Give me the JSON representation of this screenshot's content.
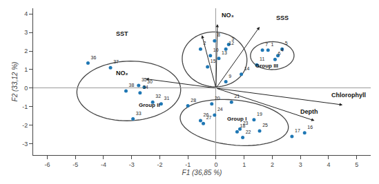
{
  "chart_data": {
    "type": "scatter",
    "xlabel": "F1 (36,85 %)",
    "ylabel": "F2 (33,12 %)",
    "xlim": [
      -6.5,
      5.5
    ],
    "ylim": [
      -3.6,
      4.3
    ],
    "xticks": [
      -6,
      -5,
      -4,
      -3,
      -2,
      -1,
      0,
      1,
      2,
      3,
      4,
      5
    ],
    "yticks": [
      -3,
      -2,
      -1,
      0,
      1,
      2,
      3,
      4
    ],
    "grid": false,
    "point_labels": [
      "1",
      "2",
      "3",
      "4",
      "5",
      "6",
      "7",
      "8",
      "9",
      "10",
      "11",
      "12",
      "13",
      "14",
      "15",
      "16",
      "17",
      "18",
      "19",
      "20",
      "21",
      "22",
      "23",
      "24",
      "25",
      "26",
      "27",
      "28",
      "30",
      "31",
      "32",
      "33",
      "34",
      "35",
      "36",
      "37",
      "38"
    ],
    "x": [
      1.85,
      -0.55,
      0.45,
      2.2,
      2.35,
      2.1,
      1.65,
      -0.05,
      0.35,
      -0.2,
      1.45,
      0.35,
      0.1,
      0.9,
      -0.3,
      3.15,
      2.7,
      0.75,
      1.35,
      -0.15,
      0.55,
      0.95,
      0.85,
      -0.05,
      1.55,
      -0.55,
      -0.45,
      -1.0,
      -2.55,
      -1.95,
      -2.25,
      -2.95,
      -2.7,
      -2.75,
      -4.55,
      -3.75,
      -3.2
    ],
    "values": [
      2.05,
      2.1,
      2.35,
      1.75,
      2.1,
      1.55,
      2.05,
      2.55,
      0.35,
      1.75,
      1.25,
      2.1,
      1.6,
      0.75,
      1.15,
      -2.4,
      -2.6,
      -2.35,
      -1.7,
      -0.85,
      -0.75,
      -2.65,
      -2.2,
      -1.45,
      -2.3,
      -1.75,
      -1.9,
      -0.95,
      0.05,
      -0.85,
      -0.75,
      -1.65,
      -0.25,
      0.15,
      1.35,
      1.1,
      -0.15
    ],
    "vectors": [
      {
        "label": "NO₃",
        "x": 0.05,
        "y": 3.45,
        "label_x": 0.15,
        "label_y": 3.68
      },
      {
        "label": "SSS",
        "x": 1.55,
        "y": 3.3,
        "label_x": 2.1,
        "label_y": 3.52
      },
      {
        "label": "SST",
        "x": -0.5,
        "y": 2.85,
        "label_x": -3.6,
        "label_y": 2.65
      },
      {
        "label": "NO₂",
        "x": -2.5,
        "y": 0.5,
        "label_x": -3.6,
        "label_y": 0.55
      },
      {
        "label": "Chlorophyll",
        "x": 4.5,
        "y": -0.9,
        "label_x": 4.05,
        "label_y": -0.65
      },
      {
        "label": "Depth",
        "x": 3.5,
        "y": -1.75,
        "label_x": 2.95,
        "label_y": -1.52
      }
    ],
    "ellipses": [
      {
        "cx": -3.1,
        "cy": -0.15,
        "width": 3.7,
        "height": 3.2,
        "angle": 8
      },
      {
        "cx": -0.05,
        "cy": 1.55,
        "width": 2.3,
        "height": 2.95,
        "angle": 3
      },
      {
        "cx": 2.0,
        "cy": 1.75,
        "width": 1.55,
        "height": 1.5,
        "angle": 8
      },
      {
        "cx": 0.65,
        "cy": -1.85,
        "width": 3.9,
        "height": 2.4,
        "angle": -12
      }
    ],
    "annotations": [
      {
        "text": "Group I",
        "x": 0.35,
        "y": -1.9
      },
      {
        "text": "Group II",
        "x": -2.8,
        "y": -1.15
      },
      {
        "text": "Group III",
        "x": 1.35,
        "y": 0.95
      }
    ]
  }
}
